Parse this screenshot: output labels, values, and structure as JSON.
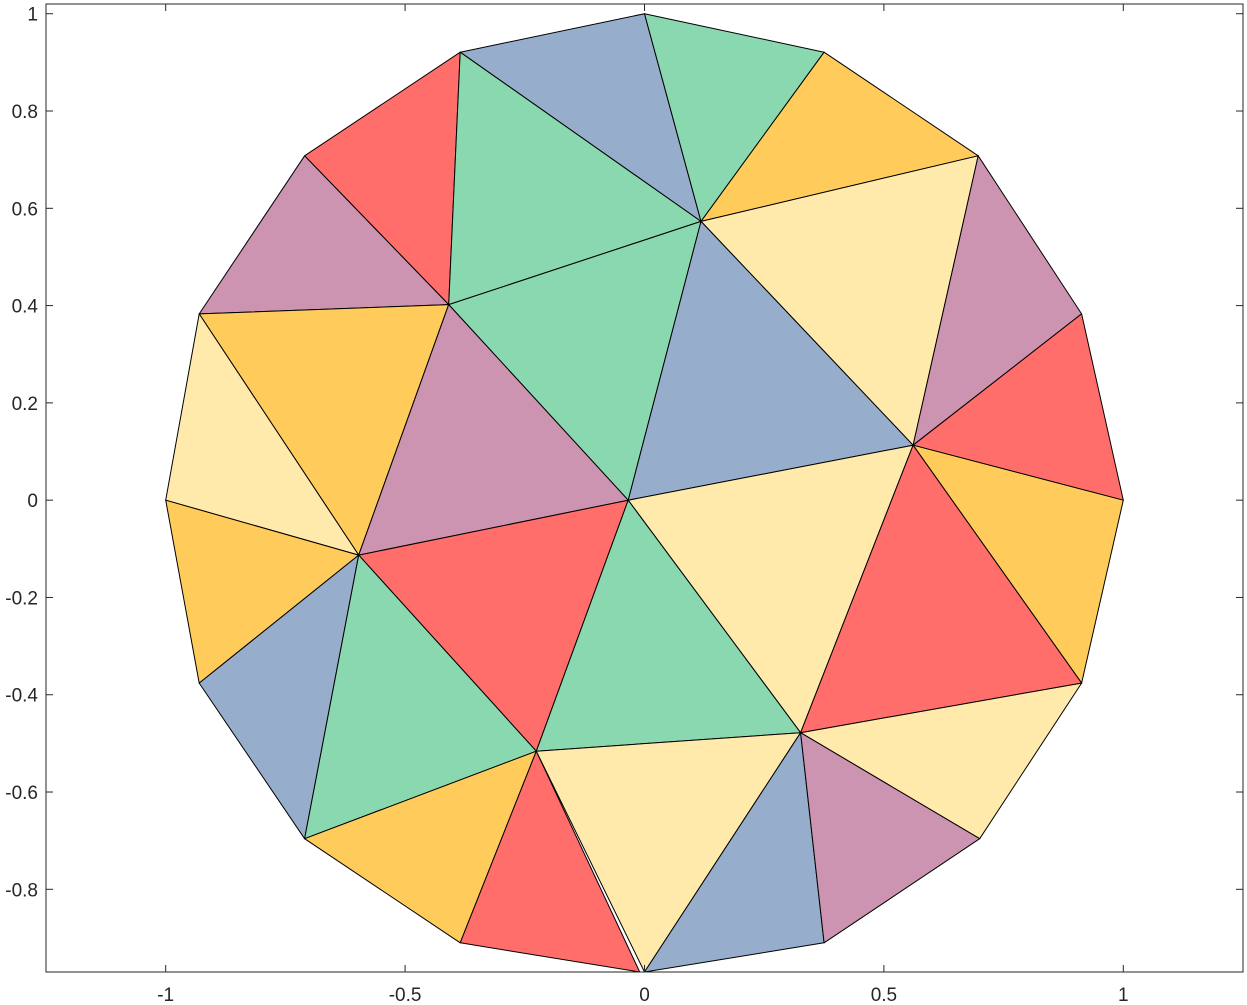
{
  "chart_data": {
    "type": "triangulated_patch",
    "title": "",
    "xlabel": "",
    "ylabel": "",
    "xlim": [
      -1.25,
      1.25
    ],
    "ylim": [
      -0.97,
      1.02
    ],
    "grid": false,
    "legend": "none",
    "x_ticks": [
      -1,
      -0.5,
      0,
      0.5,
      1
    ],
    "x_tick_labels": [
      "-1",
      "-0.5",
      "0",
      "0.5",
      "1"
    ],
    "y_ticks": [
      1,
      0.8,
      0.6,
      0.4,
      0.2,
      0,
      -0.2,
      -0.4,
      -0.6,
      -0.8
    ],
    "y_tick_labels": [
      "1",
      "0.8",
      "0.6",
      "0.4",
      "0.2",
      "0",
      "-0.2",
      "-0.4",
      "-0.6",
      "-0.8"
    ],
    "palette": {
      "red": "#ff6e6b",
      "orange": "#ffcc5c",
      "yellow": "#ffeaab",
      "green": "#89d8b0",
      "blue": "#96aecc",
      "purple": "#cc94b1"
    },
    "vertices": [
      [
        1.0,
        0.0
      ],
      [
        0.913,
        0.383
      ],
      [
        0.697,
        0.708
      ],
      [
        0.375,
        0.921
      ],
      [
        0.0,
        1.0
      ],
      [
        -0.385,
        0.921
      ],
      [
        -0.71,
        0.708
      ],
      [
        -0.93,
        0.383
      ],
      [
        -1.0,
        0.0
      ],
      [
        -0.93,
        -0.376
      ],
      [
        -0.71,
        -0.696
      ],
      [
        -0.385,
        -0.91
      ],
      [
        -0.01,
        -0.97
      ],
      [
        0.0,
        -0.97
      ],
      [
        0.375,
        -0.91
      ],
      [
        0.7,
        -0.696
      ],
      [
        0.913,
        -0.376
      ],
      [
        0.118,
        0.573
      ],
      [
        -0.409,
        0.402
      ],
      [
        -0.597,
        -0.113
      ],
      [
        -0.226,
        -0.516
      ],
      [
        0.326,
        -0.478
      ],
      [
        0.561,
        0.113
      ],
      [
        -0.034,
        0.0
      ]
    ],
    "triangles": [
      {
        "v": [
          5,
          4,
          17
        ],
        "color": "blue"
      },
      {
        "v": [
          4,
          3,
          17
        ],
        "color": "green"
      },
      {
        "v": [
          3,
          2,
          17
        ],
        "color": "orange"
      },
      {
        "v": [
          6,
          5,
          18
        ],
        "color": "red"
      },
      {
        "v": [
          5,
          17,
          18
        ],
        "color": "green"
      },
      {
        "v": [
          17,
          2,
          22
        ],
        "color": "yellow"
      },
      {
        "v": [
          2,
          1,
          22
        ],
        "color": "purple"
      },
      {
        "v": [
          1,
          0,
          22
        ],
        "color": "red"
      },
      {
        "v": [
          6,
          18,
          7
        ],
        "color": "purple"
      },
      {
        "v": [
          18,
          17,
          23
        ],
        "color": "green"
      },
      {
        "v": [
          17,
          22,
          23
        ],
        "color": "blue"
      },
      {
        "v": [
          7,
          18,
          19
        ],
        "color": "orange"
      },
      {
        "v": [
          18,
          23,
          19
        ],
        "color": "purple"
      },
      {
        "v": [
          7,
          19,
          8
        ],
        "color": "yellow"
      },
      {
        "v": [
          22,
          0,
          16
        ],
        "color": "orange"
      },
      {
        "v": [
          8,
          19,
          9
        ],
        "color": "orange"
      },
      {
        "v": [
          19,
          23,
          20
        ],
        "color": "red"
      },
      {
        "v": [
          23,
          22,
          21
        ],
        "color": "yellow"
      },
      {
        "v": [
          22,
          16,
          21
        ],
        "color": "red"
      },
      {
        "v": [
          9,
          19,
          10
        ],
        "color": "blue"
      },
      {
        "v": [
          19,
          20,
          10
        ],
        "color": "green"
      },
      {
        "v": [
          23,
          21,
          20
        ],
        "color": "green"
      },
      {
        "v": [
          16,
          15,
          21
        ],
        "color": "yellow"
      },
      {
        "v": [
          10,
          20,
          11
        ],
        "color": "orange"
      },
      {
        "v": [
          20,
          12,
          11
        ],
        "color": "red"
      },
      {
        "v": [
          20,
          21,
          13
        ],
        "color": "yellow"
      },
      {
        "v": [
          21,
          14,
          13
        ],
        "color": "blue"
      },
      {
        "v": [
          21,
          15,
          14
        ],
        "color": "purple"
      }
    ]
  }
}
